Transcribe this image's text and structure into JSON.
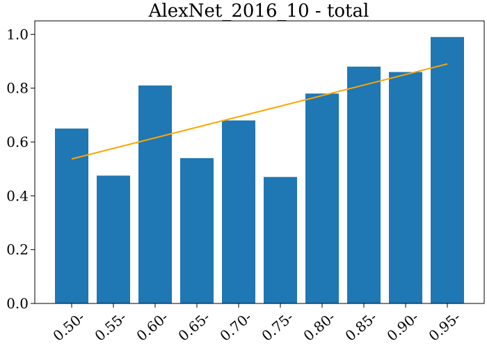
{
  "chart_data": {
    "type": "bar",
    "title": "AlexNet_2016_10 - total",
    "xlabel": "",
    "ylabel": "",
    "categories": [
      "0.50-",
      "0.55-",
      "0.60-",
      "0.65-",
      "0.70-",
      "0.75-",
      "0.80-",
      "0.85-",
      "0.90-",
      "0.95-"
    ],
    "values": [
      0.65,
      0.475,
      0.81,
      0.54,
      0.68,
      0.47,
      0.78,
      0.88,
      0.86,
      0.99
    ],
    "ylim": [
      0,
      1.05
    ],
    "yticks": [
      0.0,
      0.2,
      0.4,
      0.6,
      0.8,
      1.0
    ],
    "ytick_labels": [
      "0.0",
      "0.2",
      "0.4",
      "0.6",
      "0.8",
      "1.0"
    ],
    "trend_line": {
      "start": 0.537,
      "end": 0.89
    },
    "grid": false,
    "colors": {
      "bar": "#1f77b4",
      "trend": "#ffa500"
    }
  }
}
